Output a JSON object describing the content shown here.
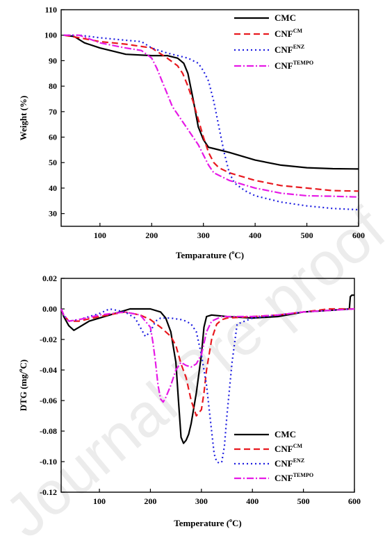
{
  "watermark": "Journal Pre-proof",
  "colors": {
    "CMC": "#000000",
    "CNF_CM": "#e8191f",
    "CNF_ENZ": "#1c1ce0",
    "CNF_TEMPO": "#e619e6"
  },
  "chart_data": [
    {
      "type": "line",
      "xlabel": "Temparature (°C)",
      "ylabel": "Weight (%)",
      "xlim": [
        25,
        600
      ],
      "ylim": [
        25,
        110
      ],
      "xticks": [
        100,
        200,
        300,
        400,
        500,
        600
      ],
      "yticks": [
        30,
        40,
        50,
        60,
        70,
        80,
        90,
        100,
        110
      ],
      "legend_position": "top-right",
      "series": [
        {
          "name": "CMC",
          "base": "CNF",
          "sup": "",
          "label": "CMC",
          "color": "#000000",
          "dash": "",
          "x": [
            30,
            50,
            70,
            100,
            150,
            200,
            230,
            250,
            262,
            270,
            280,
            290,
            300,
            310,
            320,
            350,
            400,
            450,
            500,
            550,
            600
          ],
          "y": [
            100,
            99.5,
            97,
            95,
            92.5,
            92,
            92,
            91,
            89,
            85,
            75,
            64,
            59,
            56,
            55.5,
            54,
            51,
            49,
            48,
            47.6,
            47.5
          ]
        },
        {
          "name": "CNF CM",
          "base": "CNF",
          "sup": "CM",
          "color": "#e8191f",
          "dash": "9,5",
          "x": [
            30,
            60,
            100,
            150,
            200,
            230,
            250,
            260,
            270,
            280,
            290,
            300,
            310,
            320,
            330,
            350,
            400,
            450,
            500,
            550,
            600
          ],
          "y": [
            100,
            99,
            97.5,
            96.5,
            95,
            91,
            88,
            85,
            80,
            74,
            67,
            60,
            54,
            50,
            48,
            46,
            43,
            41,
            40,
            39,
            38.8
          ]
        },
        {
          "name": "CNF ENZ",
          "base": "CNF",
          "sup": "ENZ",
          "color": "#1c1ce0",
          "dash": "2,4",
          "x": [
            30,
            60,
            100,
            150,
            180,
            200,
            230,
            250,
            270,
            290,
            300,
            310,
            320,
            330,
            340,
            350,
            360,
            380,
            400,
            450,
            500,
            550,
            600
          ],
          "y": [
            100,
            100,
            99,
            98,
            97.5,
            95,
            93,
            92,
            91,
            89,
            86,
            82,
            74,
            64,
            54,
            46,
            42,
            39,
            37,
            34.5,
            33,
            32,
            31.5
          ]
        },
        {
          "name": "CNF TEMPO",
          "base": "CNF",
          "sup": "TEMPO",
          "color": "#e619e6",
          "dash": "10,3,2,3",
          "x": [
            30,
            60,
            100,
            150,
            180,
            200,
            210,
            220,
            230,
            240,
            250,
            260,
            270,
            280,
            290,
            300,
            310,
            320,
            350,
            400,
            450,
            500,
            550,
            600
          ],
          "y": [
            100,
            100,
            97,
            95,
            94,
            91,
            87,
            82,
            77,
            72,
            69,
            66,
            63,
            60,
            57,
            53,
            49,
            46,
            43,
            40,
            38,
            37,
            36.8,
            36.5
          ]
        }
      ]
    },
    {
      "type": "line",
      "xlabel": "Temperature (°C)",
      "ylabel": "DTG (mg/°C)",
      "xlim": [
        25,
        600
      ],
      "ylim": [
        -0.12,
        0.02
      ],
      "xticks": [
        100,
        200,
        300,
        400,
        500,
        600
      ],
      "yticks": [
        0.02,
        0.0,
        -0.02,
        -0.04,
        -0.06,
        -0.08,
        -0.1,
        -0.12
      ],
      "legend_position": "bottom-right",
      "series": [
        {
          "name": "CMC",
          "base": "CMC",
          "sup": "",
          "color": "#000000",
          "dash": "",
          "x": [
            25,
            30,
            40,
            50,
            60,
            80,
            100,
            120,
            140,
            160,
            180,
            200,
            220,
            230,
            240,
            250,
            255,
            260,
            265,
            270,
            275,
            280,
            290,
            300,
            305,
            310,
            320,
            350,
            400,
            450,
            500,
            550,
            590,
            592,
            595,
            600
          ],
          "y": [
            0.0,
            -0.005,
            -0.011,
            -0.014,
            -0.012,
            -0.008,
            -0.006,
            -0.004,
            -0.002,
            0.0,
            0.0,
            0.0,
            -0.002,
            -0.006,
            -0.015,
            -0.035,
            -0.06,
            -0.084,
            -0.088,
            -0.086,
            -0.082,
            -0.075,
            -0.055,
            -0.03,
            -0.012,
            -0.005,
            -0.004,
            -0.005,
            -0.006,
            -0.005,
            -0.002,
            -0.001,
            0.0,
            0.008,
            0.009,
            0.009
          ]
        },
        {
          "name": "CNF CM",
          "base": "CNF",
          "sup": "CM",
          "color": "#e8191f",
          "dash": "9,5",
          "x": [
            25,
            30,
            40,
            60,
            100,
            150,
            180,
            200,
            220,
            240,
            250,
            255,
            260,
            270,
            280,
            290,
            300,
            305,
            310,
            320,
            330,
            340,
            350,
            400,
            450,
            500,
            550,
            600
          ],
          "y": [
            0.0,
            -0.004,
            -0.008,
            -0.008,
            -0.005,
            -0.002,
            -0.004,
            -0.007,
            -0.012,
            -0.018,
            -0.024,
            -0.03,
            -0.036,
            -0.045,
            -0.06,
            -0.07,
            -0.066,
            -0.055,
            -0.04,
            -0.02,
            -0.01,
            -0.007,
            -0.006,
            -0.005,
            -0.004,
            -0.002,
            0.0,
            0.0
          ]
        },
        {
          "name": "CNF ENZ",
          "base": "CNF",
          "sup": "ENZ",
          "color": "#1c1ce0",
          "dash": "2,4",
          "x": [
            25,
            30,
            40,
            60,
            80,
            100,
            120,
            150,
            170,
            180,
            190,
            200,
            210,
            220,
            240,
            260,
            270,
            280,
            290,
            300,
            310,
            320,
            325,
            330,
            335,
            340,
            345,
            350,
            360,
            370,
            400,
            450,
            500,
            550,
            600
          ],
          "y": [
            0.0,
            -0.004,
            -0.008,
            -0.007,
            -0.005,
            -0.003,
            0.0,
            -0.002,
            -0.006,
            -0.012,
            -0.018,
            -0.015,
            -0.008,
            -0.006,
            -0.006,
            -0.007,
            -0.008,
            -0.01,
            -0.015,
            -0.03,
            -0.05,
            -0.08,
            -0.095,
            -0.1,
            -0.101,
            -0.1,
            -0.09,
            -0.07,
            -0.035,
            -0.01,
            -0.006,
            -0.004,
            -0.002,
            -0.001,
            0.0
          ]
        },
        {
          "name": "CNF TEMPO",
          "base": "CNF",
          "sup": "TEMPO",
          "color": "#e619e6",
          "dash": "10,3,2,3",
          "x": [
            25,
            30,
            40,
            60,
            100,
            150,
            180,
            200,
            205,
            210,
            215,
            220,
            225,
            230,
            240,
            250,
            260,
            270,
            280,
            290,
            300,
            310,
            320,
            340,
            400,
            450,
            500,
            550,
            600
          ],
          "y": [
            0.0,
            -0.004,
            -0.008,
            -0.007,
            -0.004,
            -0.002,
            -0.004,
            -0.012,
            -0.022,
            -0.035,
            -0.05,
            -0.059,
            -0.061,
            -0.058,
            -0.05,
            -0.04,
            -0.035,
            -0.037,
            -0.038,
            -0.036,
            -0.03,
            -0.015,
            -0.008,
            -0.005,
            -0.005,
            -0.004,
            -0.002,
            -0.001,
            0.0
          ]
        }
      ]
    }
  ]
}
